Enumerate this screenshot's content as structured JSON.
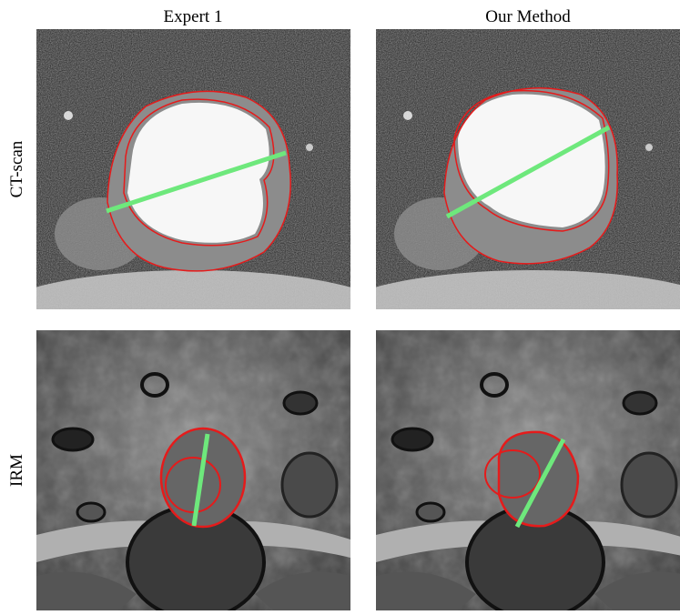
{
  "columns": [
    "Expert 1",
    "Our Method"
  ],
  "rows": [
    "CT-scan",
    "IRM"
  ]
}
